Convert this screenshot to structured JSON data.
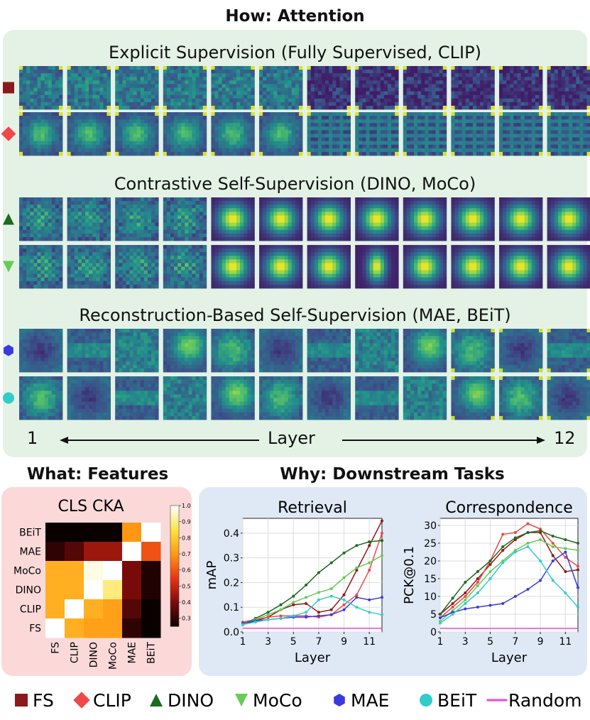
{
  "header_top": "How: Attention",
  "groups": [
    {
      "title": "Explicit Supervision (Fully Supervised, CLIP)",
      "rows": [
        "FS",
        "CLIP"
      ]
    },
    {
      "title": "Contrastive Self-Supervision (DINO, MoCo)",
      "rows": [
        "DINO",
        "MoCo"
      ]
    },
    {
      "title": "Reconstruction-Based Self-Supervision (MAE, BEiT)",
      "rows": [
        "MAE",
        "BEiT"
      ]
    }
  ],
  "layer_axis": {
    "start": "1",
    "label": "Layer",
    "end": "12"
  },
  "header_features": "What: Features",
  "header_tasks": "Why: Downstream Tasks",
  "colors": {
    "FS": "#8b1a1a",
    "CLIP": "#f04848",
    "DINO": "#1e6b1e",
    "MoCo": "#66cc55",
    "MAE": "#3a3ae0",
    "BEiT": "#33cccc",
    "Random": "#ee44dd",
    "attention_panel_bg": "#e3f2e5",
    "features_panel_bg": "#fbd9d9",
    "tasks_panel_bg": "#dfe9f5"
  },
  "legend": [
    {
      "label": "FS",
      "marker": "square"
    },
    {
      "label": "CLIP",
      "marker": "diamond"
    },
    {
      "label": "DINO",
      "marker": "triangle-up"
    },
    {
      "label": "MoCo",
      "marker": "triangle-down"
    },
    {
      "label": "MAE",
      "marker": "hexagon"
    },
    {
      "label": "BEiT",
      "marker": "circle"
    },
    {
      "label": "Random",
      "marker": "line"
    }
  ],
  "chart_data": [
    {
      "type": "heatmap",
      "title": "CLS CKA",
      "rows": [
        "BEiT",
        "MAE",
        "MoCo",
        "DINO",
        "CLIP",
        "FS"
      ],
      "cols": [
        "FS",
        "CLIP",
        "DINO",
        "MoCo",
        "MAE",
        "BEiT"
      ],
      "values": [
        [
          0.2,
          0.2,
          0.22,
          0.22,
          0.7,
          1.0
        ],
        [
          0.3,
          0.35,
          0.45,
          0.45,
          1.0,
          0.6
        ],
        [
          0.75,
          0.75,
          0.98,
          1.0,
          0.4,
          0.28
        ],
        [
          0.75,
          0.75,
          1.0,
          0.9,
          0.4,
          0.28
        ],
        [
          0.75,
          1.0,
          0.75,
          0.72,
          0.35,
          0.22
        ],
        [
          1.0,
          0.75,
          0.72,
          0.72,
          0.3,
          0.2
        ]
      ],
      "colorbar": {
        "range": [
          0.25,
          1.0
        ],
        "ticks": [
          "1.0",
          "0.9",
          "0.8",
          "0.7",
          "0.6",
          "0.5",
          "0.4",
          "0.3"
        ]
      }
    },
    {
      "type": "line",
      "title": "Retrieval",
      "xlabel": "Layer",
      "ylabel": "mAP",
      "x": [
        1,
        2,
        3,
        4,
        5,
        6,
        7,
        8,
        9,
        10,
        11,
        12
      ],
      "xticks": [
        "1",
        "3",
        "5",
        "7",
        "9",
        "11"
      ],
      "ylim": [
        0,
        0.46
      ],
      "yticks": [
        "0.0",
        "0.1",
        "0.2",
        "0.3",
        "0.4"
      ],
      "series": [
        {
          "name": "FS",
          "values": [
            0.03,
            0.045,
            0.06,
            0.09,
            0.11,
            0.115,
            0.08,
            0.09,
            0.15,
            0.25,
            0.35,
            0.45
          ]
        },
        {
          "name": "CLIP",
          "values": [
            0.04,
            0.05,
            0.06,
            0.065,
            0.065,
            0.065,
            0.06,
            0.07,
            0.11,
            0.15,
            0.25,
            0.4
          ]
        },
        {
          "name": "DINO",
          "values": [
            0.03,
            0.055,
            0.08,
            0.11,
            0.145,
            0.19,
            0.24,
            0.28,
            0.32,
            0.35,
            0.365,
            0.37
          ]
        },
        {
          "name": "MoCo",
          "values": [
            0.03,
            0.05,
            0.07,
            0.09,
            0.12,
            0.14,
            0.16,
            0.175,
            0.22,
            0.26,
            0.28,
            0.31
          ]
        },
        {
          "name": "MAE",
          "values": [
            0.035,
            0.045,
            0.05,
            0.055,
            0.06,
            0.06,
            0.065,
            0.07,
            0.09,
            0.14,
            0.13,
            0.14
          ]
        },
        {
          "name": "BEiT",
          "values": [
            0.03,
            0.04,
            0.05,
            0.055,
            0.065,
            0.08,
            0.13,
            0.145,
            0.13,
            0.1,
            0.08,
            0.07
          ]
        },
        {
          "name": "Random",
          "values": [
            0.015,
            0.015,
            0.015,
            0.015,
            0.015,
            0.015,
            0.015,
            0.015,
            0.015,
            0.015,
            0.015,
            0.015
          ]
        }
      ]
    },
    {
      "type": "line",
      "title": "Correspondence",
      "xlabel": "Layer",
      "ylabel": "PCK@0.1",
      "x": [
        1,
        2,
        3,
        4,
        5,
        6,
        7,
        8,
        9,
        10,
        11,
        12
      ],
      "xticks": [
        "1",
        "3",
        "5",
        "7",
        "9",
        "11"
      ],
      "ylim": [
        0,
        32
      ],
      "yticks": [
        "0",
        "5",
        "10",
        "15",
        "20",
        "25",
        "30"
      ],
      "series": [
        {
          "name": "FS",
          "values": [
            5,
            8,
            11,
            15,
            19,
            23,
            26,
            28,
            28,
            21.5,
            17,
            17.5
          ]
        },
        {
          "name": "CLIP",
          "values": [
            4,
            7,
            10,
            14,
            20,
            27.5,
            28,
            30.5,
            29,
            25,
            21,
            18.5
          ]
        },
        {
          "name": "DINO",
          "values": [
            5,
            9.5,
            14,
            17,
            20,
            24,
            26.5,
            28,
            28.5,
            27,
            26,
            25
          ]
        },
        {
          "name": "MoCo",
          "values": [
            3,
            6,
            9,
            13,
            17,
            20,
            23,
            25,
            26,
            24,
            23.5,
            23
          ]
        },
        {
          "name": "MAE",
          "values": [
            4,
            5.5,
            6.5,
            7,
            7.5,
            8,
            10,
            12,
            14.5,
            20,
            22.5,
            12.5
          ]
        },
        {
          "name": "BEiT",
          "values": [
            2.5,
            5,
            8,
            11,
            15,
            19.5,
            22.5,
            24,
            20,
            14.5,
            11,
            7
          ]
        },
        {
          "name": "Random",
          "values": [
            1,
            1,
            1,
            1,
            1,
            1,
            1,
            1,
            1,
            1,
            1,
            1
          ]
        }
      ]
    }
  ]
}
